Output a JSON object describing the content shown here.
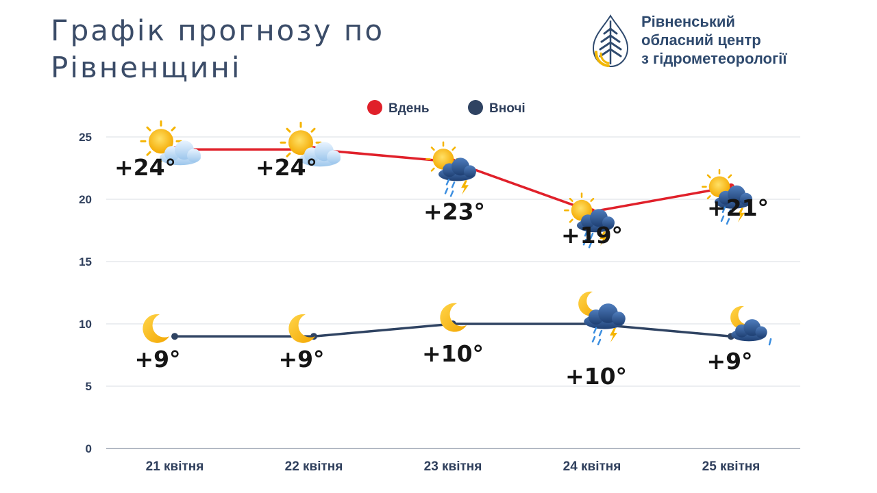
{
  "page": {
    "title_line1": "Графік прогнозу по",
    "title_line2": "Рівненщині"
  },
  "org": {
    "line1": "Рівненський",
    "line2": "обласний центр",
    "line3": "з гідрометеорології",
    "logo_icon": "water-drop-wheat-logo-icon"
  },
  "chart_data": {
    "type": "line",
    "categories": [
      "21 квітня",
      "22 квітня",
      "23 квітня",
      "24 квітня",
      "25 квітня"
    ],
    "ylim": [
      0,
      25
    ],
    "yticks": [
      0,
      5,
      10,
      15,
      20,
      25
    ],
    "grid": true,
    "legend_position": "top-center",
    "series": [
      {
        "name": "Вдень",
        "color": "#e0202a",
        "values": [
          24,
          24,
          23,
          19,
          21
        ],
        "labels": [
          "+24°",
          "+24°",
          "+23°",
          "+19°",
          "+21°"
        ],
        "icons": [
          "sun-cloud-icon",
          "sun-cloud-icon",
          "sun-cloud-rain-thunder-icon",
          "sun-cloud-rain-thunder-icon",
          "sun-cloud-rain-thunder-icon"
        ]
      },
      {
        "name": "Вночі",
        "color": "#2f4362",
        "values": [
          9,
          9,
          10,
          10,
          9
        ],
        "labels": [
          "+9°",
          "+9°",
          "+10°",
          "+10°",
          "+9°"
        ],
        "icons": [
          "moon-icon",
          "moon-icon",
          "moon-icon",
          "moon-cloud-rain-thunder-icon",
          "moon-cloud-rain-icon"
        ]
      }
    ]
  }
}
